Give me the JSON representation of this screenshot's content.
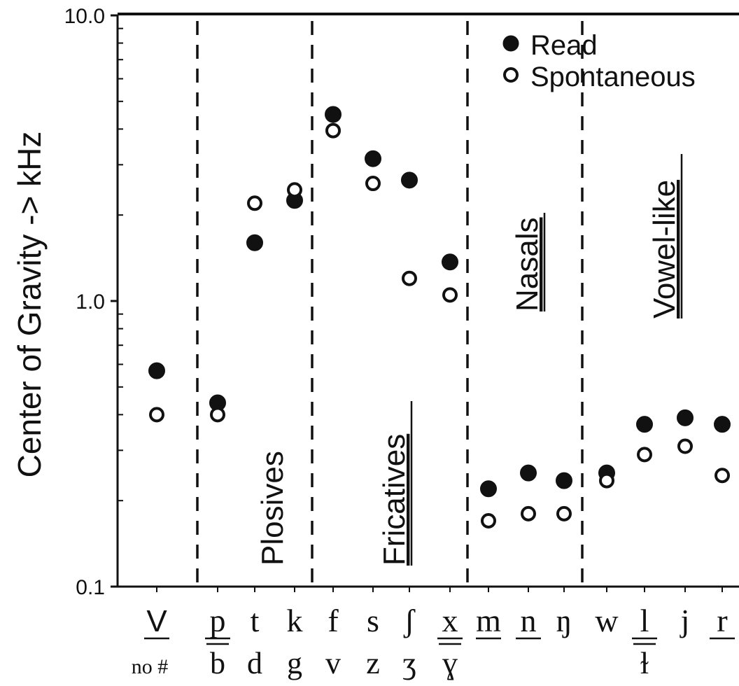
{
  "chart_data": {
    "type": "scatter",
    "title": "",
    "xlabel": "",
    "ylabel": "Center of Gravity -> kHz",
    "yscale": "log",
    "ylim": [
      0.1,
      10.0
    ],
    "yticks": [
      "10.0",
      "1.0",
      "0.1"
    ],
    "grid": false,
    "legend_position": "top-right",
    "categories": [
      {
        "top": "V",
        "top_underline": true,
        "bottom": "no #",
        "bottom_underline": false
      },
      {
        "top": "p",
        "top_underline": true,
        "bottom": "b",
        "bottom_underline": true
      },
      {
        "top": "t",
        "top_underline": false,
        "bottom": "d",
        "bottom_underline": false
      },
      {
        "top": "k",
        "top_underline": false,
        "bottom": "g",
        "bottom_underline": false
      },
      {
        "top": "f",
        "top_underline": false,
        "bottom": "v",
        "bottom_underline": false
      },
      {
        "top": "s",
        "top_underline": false,
        "bottom": "z",
        "bottom_underline": false
      },
      {
        "top": "ʃ",
        "top_underline": false,
        "bottom": "ʒ",
        "bottom_underline": false
      },
      {
        "top": "x",
        "top_underline": true,
        "bottom": "ɣ",
        "bottom_underline": true
      },
      {
        "top": "m",
        "top_underline": true,
        "bottom": "",
        "bottom_underline": false
      },
      {
        "top": "n",
        "top_underline": true,
        "bottom": "",
        "bottom_underline": false
      },
      {
        "top": "ŋ",
        "top_underline": false,
        "bottom": "",
        "bottom_underline": false
      },
      {
        "top": "w",
        "top_underline": false,
        "bottom": "",
        "bottom_underline": false
      },
      {
        "top": "l",
        "top_underline": true,
        "bottom": "ɫ",
        "bottom_underline": true
      },
      {
        "top": "j",
        "top_underline": false,
        "bottom": "",
        "bottom_underline": false
      },
      {
        "top": "r",
        "top_underline": true,
        "bottom": "",
        "bottom_underline": false
      }
    ],
    "series": [
      {
        "name": "Read",
        "marker": "filled-circle",
        "color": "#111111",
        "values": [
          0.57,
          0.44,
          1.6,
          2.25,
          4.5,
          3.15,
          2.65,
          1.37,
          0.22,
          0.25,
          0.235,
          0.25,
          0.37,
          0.39,
          0.37
        ]
      },
      {
        "name": "Spontaneous",
        "marker": "open-circle",
        "color": "#111111",
        "values": [
          0.4,
          0.4,
          2.2,
          2.45,
          3.95,
          2.58,
          1.2,
          1.05,
          0.17,
          0.18,
          0.18,
          0.235,
          0.29,
          0.31,
          0.245
        ]
      }
    ],
    "groups": [
      {
        "label": "Plosives",
        "underline": false,
        "after_category": 0
      },
      {
        "label": "Fricatives",
        "underline": true,
        "after_category": 3
      },
      {
        "label": "Nasals",
        "underline": true,
        "after_category": 7
      },
      {
        "label": "Vowel-like",
        "underline": true,
        "after_category": 10
      }
    ]
  }
}
